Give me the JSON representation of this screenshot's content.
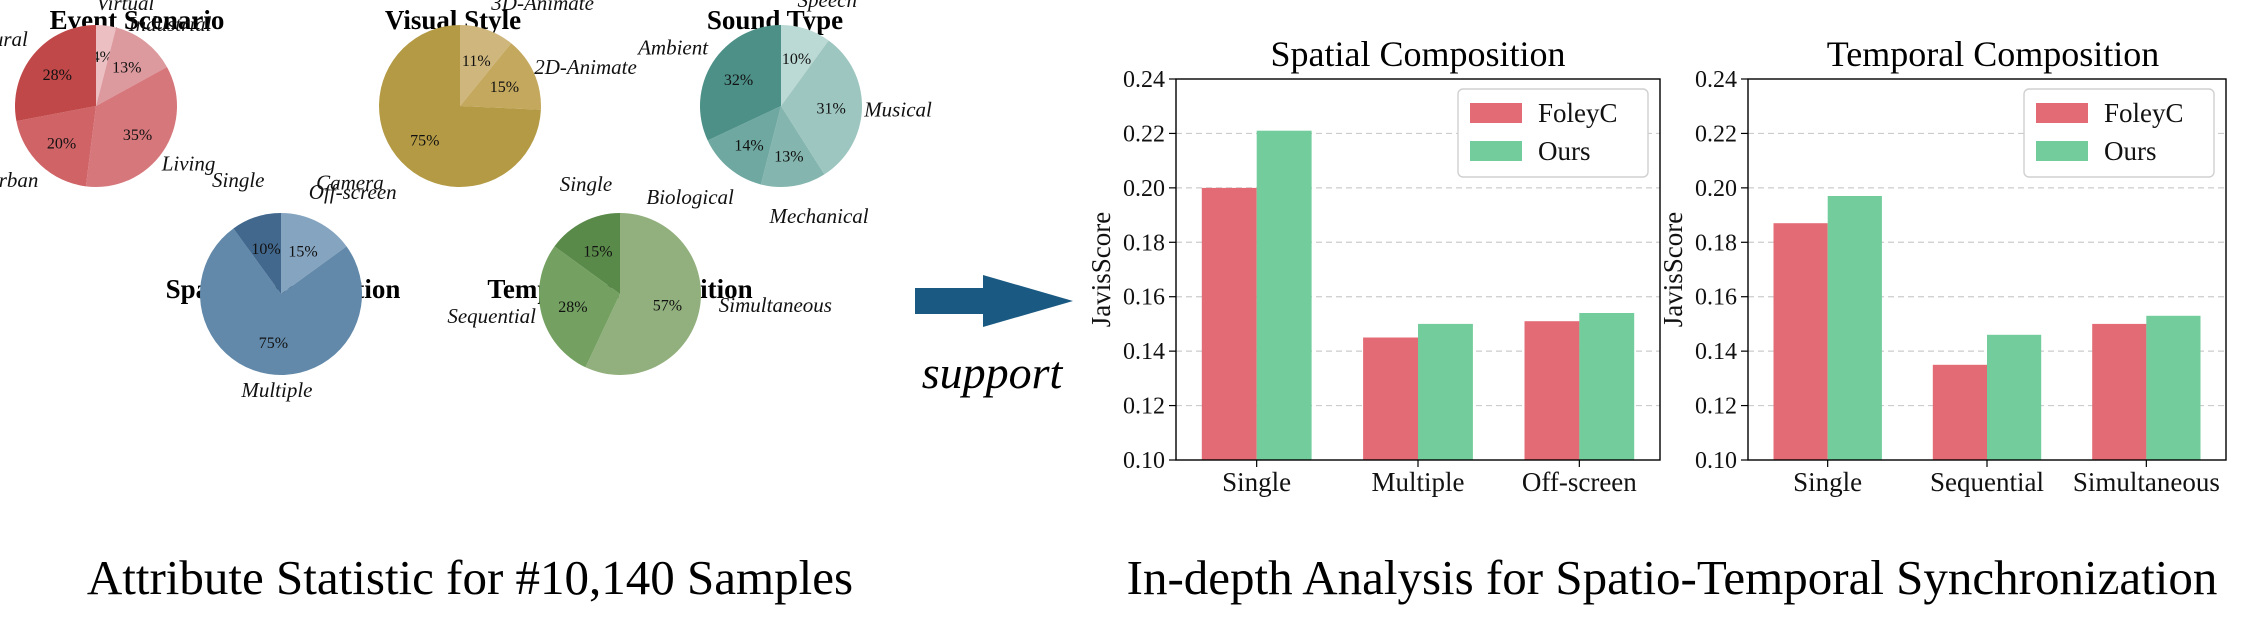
{
  "captions": {
    "left": "Attribute Statistic for #10,140 Samples",
    "right": "In-depth Analysis for Spatio-Temporal Synchronization",
    "arrow_label": "support"
  },
  "colors": {
    "foley": "#e36b75",
    "ours": "#72cc9b",
    "arrow": "#1a5a82",
    "grid": "#cccccc"
  },
  "chart_data": [
    {
      "type": "pie",
      "title": "Event Scenario",
      "labels": [
        "Virtual",
        "Industrial",
        "Living",
        "Urban",
        "Natural"
      ],
      "values": [
        4,
        13,
        35,
        20,
        28
      ],
      "pct_labels": [
        "4%",
        "13%",
        "35%",
        "20%",
        "28%"
      ],
      "colors": [
        "#ecc0c2",
        "#dc9a9e",
        "#d6777c",
        "#cf6366",
        "#c04848"
      ]
    },
    {
      "type": "pie",
      "title": "Visual Style",
      "labels": [
        "3D-Animate",
        "2D-Animate",
        "Camera"
      ],
      "values": [
        11,
        15,
        75
      ],
      "pct_labels": [
        "11%",
        "15%",
        "75%"
      ],
      "colors": [
        "#cfb67c",
        "#c4a85e",
        "#b49a44"
      ]
    },
    {
      "type": "pie",
      "title": "Sound Type",
      "labels": [
        "Speech",
        "Musical",
        "Mechanical",
        "Biological",
        "Ambient"
      ],
      "values": [
        10,
        31,
        13,
        14,
        32
      ],
      "pct_labels": [
        "10%",
        "31%",
        "13%",
        "14%",
        "32%"
      ],
      "colors": [
        "#bcdad5",
        "#9ec6c0",
        "#84b5ae",
        "#6fa8a0",
        "#4d9088"
      ]
    },
    {
      "type": "pie",
      "title": "Spatial Composition",
      "labels": [
        "Off-screen",
        "Multiple",
        "Single"
      ],
      "values": [
        15,
        75,
        10
      ],
      "pct_labels": [
        "15%",
        "75%",
        "10%"
      ],
      "colors": [
        "#85a4c0",
        "#6289aa",
        "#42688e"
      ]
    },
    {
      "type": "pie",
      "title": "Temporal Composition",
      "labels": [
        "Simultaneous",
        "Sequential",
        "Single"
      ],
      "values": [
        57,
        28,
        15
      ],
      "pct_labels": [
        "57%",
        "28%",
        "15%"
      ],
      "colors": [
        "#92b07d",
        "#74a161",
        "#5a8a4a"
      ]
    },
    {
      "type": "bar",
      "title": "Spatial Composition",
      "ylabel": "JavisScore",
      "categories": [
        "Single",
        "Multiple",
        "Off-screen"
      ],
      "series": [
        {
          "name": "FoleyC",
          "values": [
            0.2,
            0.145,
            0.151
          ]
        },
        {
          "name": "Ours",
          "values": [
            0.221,
            0.15,
            0.154
          ]
        }
      ],
      "ylim": [
        0.1,
        0.24
      ],
      "yticks": [
        "0.10",
        "0.12",
        "0.14",
        "0.16",
        "0.18",
        "0.20",
        "0.22",
        "0.24"
      ],
      "grid": true,
      "legend": "top-right"
    },
    {
      "type": "bar",
      "title": "Temporal Composition",
      "ylabel": "JavisScore",
      "categories": [
        "Single",
        "Sequential",
        "Simultaneous"
      ],
      "series": [
        {
          "name": "FoleyC",
          "values": [
            0.187,
            0.135,
            0.15
          ]
        },
        {
          "name": "Ours",
          "values": [
            0.197,
            0.146,
            0.153
          ]
        }
      ],
      "ylim": [
        0.1,
        0.24
      ],
      "yticks": [
        "0.10",
        "0.12",
        "0.14",
        "0.16",
        "0.18",
        "0.20",
        "0.22",
        "0.24"
      ],
      "grid": true,
      "legend": "top-right"
    }
  ]
}
